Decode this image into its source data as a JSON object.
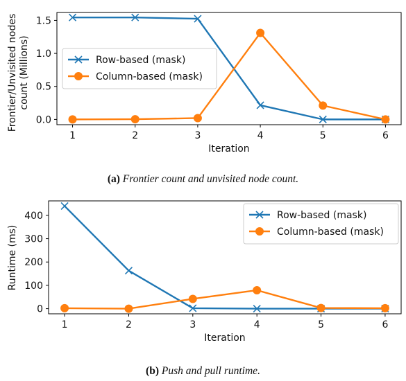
{
  "chart_data": [
    {
      "type": "line",
      "xlabel": "Iteration",
      "ylabel_lines": [
        "Frontier/Unvisited nodes",
        "count (Millions)"
      ],
      "x": [
        1,
        2,
        3,
        4,
        5,
        6
      ],
      "xticks": [
        "1",
        "2",
        "3",
        "4",
        "5",
        "6"
      ],
      "yticks": [
        "0.0",
        "0.5",
        "1.0",
        "1.5"
      ],
      "ylim": [
        -0.08,
        1.62
      ],
      "legend_placement": "center-left",
      "series": [
        {
          "name": "Row-based (mask)",
          "color": "#1f77b4",
          "marker": "x-icon",
          "values": [
            1.545,
            1.545,
            1.525,
            0.215,
            0.0,
            0.0
          ]
        },
        {
          "name": "Column-based (mask)",
          "color": "#ff7f0e",
          "marker": "circle-icon",
          "values": [
            0.0,
            0.003,
            0.02,
            1.31,
            0.21,
            0.0
          ]
        }
      ],
      "caption": {
        "label": "(a)",
        "text": "Frontier count and unvisited node count."
      }
    },
    {
      "type": "line",
      "xlabel": "Iteration",
      "ylabel_lines": [
        "Runtime (ms)"
      ],
      "x": [
        1,
        2,
        3,
        4,
        5,
        6
      ],
      "xticks": [
        "1",
        "2",
        "3",
        "4",
        "5",
        "6"
      ],
      "yticks": [
        "0",
        "100",
        "200",
        "300",
        "400"
      ],
      "ylim": [
        -22,
        462
      ],
      "legend_placement": "upper-right",
      "series": [
        {
          "name": "Row-based (mask)",
          "color": "#1f77b4",
          "marker": "x-icon",
          "values": [
            440,
            163,
            2,
            0,
            0,
            0
          ]
        },
        {
          "name": "Column-based (mask)",
          "color": "#ff7f0e",
          "marker": "circle-icon",
          "values": [
            2,
            0,
            42,
            79,
            3,
            2
          ]
        }
      ],
      "caption": {
        "label": "(b)",
        "text": "Push and pull runtime."
      }
    }
  ]
}
